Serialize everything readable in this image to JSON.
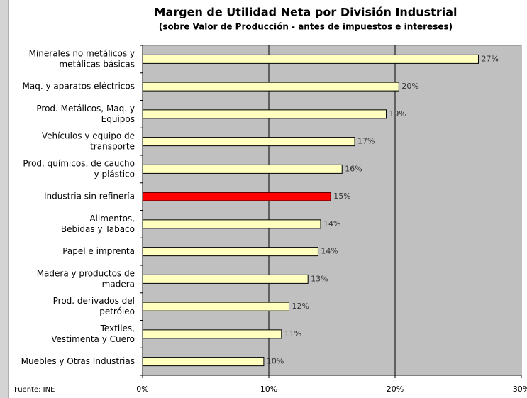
{
  "chart_data": {
    "type": "barh",
    "title": "Margen de Utilidad Neta por División Industrial",
    "subtitle": "(sobre Valor de Producción - antes de impuestos e intereses)",
    "source": "Fuente: INE",
    "categories": [
      [
        "Minerales no metálicos y",
        "metálicas básicas"
      ],
      [
        "Maq. y aparatos eléctricos"
      ],
      [
        "Prod. Metálicos, Maq. y",
        "Equipos"
      ],
      [
        "Vehículos y equipo de",
        "transporte"
      ],
      [
        "Prod. químicos, de caucho",
        "y plástico"
      ],
      [
        "Industria sin refinería"
      ],
      [
        "Alimentos,",
        "Bebidas y Tabaco"
      ],
      [
        "Papel e imprenta"
      ],
      [
        "Madera y productos de",
        "madera"
      ],
      [
        "Prod. derivados del",
        "petróleo"
      ],
      [
        "Textiles,",
        "Vestimenta y Cuero"
      ],
      [
        "Muebles y Otras Industrias"
      ]
    ],
    "values": [
      26.6,
      20.3,
      19.3,
      16.8,
      15.8,
      14.9,
      14.1,
      13.9,
      13.1,
      11.6,
      11.0,
      9.6
    ],
    "value_labels": [
      "27%",
      "20%",
      "19%",
      "17%",
      "16%",
      "15%",
      "14%",
      "14%",
      "13%",
      "12%",
      "11%",
      "10%"
    ],
    "colors": [
      "#ffffc0",
      "#ffffc0",
      "#ffffc0",
      "#ffffc0",
      "#ffffc0",
      "#ff0000",
      "#ffffc0",
      "#ffffc0",
      "#ffffc0",
      "#ffffc0",
      "#ffffc0",
      "#ffffc0"
    ],
    "xlim": [
      0,
      30
    ],
    "xticks": [
      {
        "value": 0,
        "label": "0%"
      },
      {
        "value": 10,
        "label": "10%"
      },
      {
        "value": 20,
        "label": "20%"
      },
      {
        "value": 30,
        "label": "30%"
      }
    ],
    "grid": true,
    "plot_background": "#c0c0c0"
  }
}
